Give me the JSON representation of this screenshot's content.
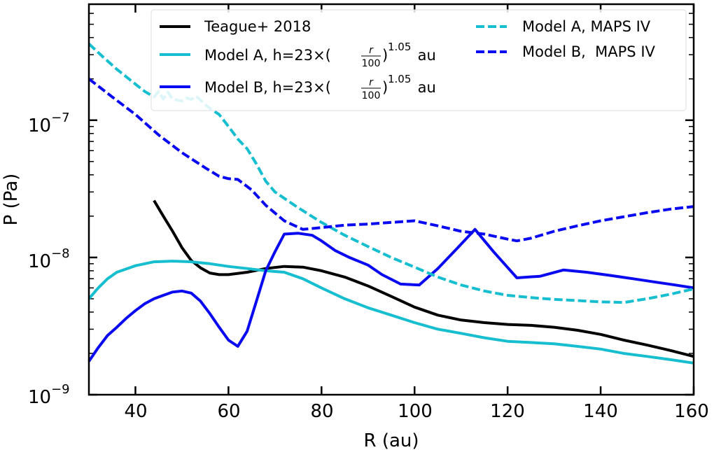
{
  "chart_data": {
    "type": "line",
    "title": "",
    "xlabel": "R (au)",
    "ylabel": "P (Pa)",
    "xlim": [
      30,
      160
    ],
    "ylim": [
      1e-09,
      7e-07
    ],
    "yscale": "log",
    "x_ticks": [
      40,
      60,
      80,
      100,
      120,
      140,
      160
    ],
    "x_tick_labels": [
      "40",
      "60",
      "80",
      "100",
      "120",
      "140",
      "160"
    ],
    "y_major_ticks": [
      {
        "base": "10",
        "exp": "−9",
        "value": 1e-09
      },
      {
        "base": "10",
        "exp": "−8",
        "value": 1e-08
      },
      {
        "base": "10",
        "exp": "−7",
        "value": 1e-07
      }
    ],
    "legend_position": "top",
    "legend": [
      {
        "label": "Teague+ 2018",
        "color": "#000000",
        "dash": "solid"
      },
      {
        "label_prefix": "Model A, h=23×(",
        "frac_num": "r",
        "frac_den": "100",
        "frac_exp": "1.05",
        "label_suffix": " au",
        "color": "#17becf",
        "dash": "solid"
      },
      {
        "label_prefix": "Model B, h=23×(",
        "frac_num": "r",
        "frac_den": "100",
        "frac_exp": "1.05",
        "label_suffix": " au",
        "color": "#0a0af0",
        "dash": "solid"
      },
      {
        "label": "Model A, MAPS IV",
        "color": "#17becf",
        "dash": "dashed"
      },
      {
        "label": "Model B,  MAPS IV",
        "color": "#0a0af0",
        "dash": "dashed"
      }
    ],
    "series": [
      {
        "name": "Teague+ 2018",
        "color": "#000000",
        "dash": "solid",
        "x": [
          44,
          46,
          48,
          50,
          52,
          54,
          56,
          58,
          60,
          64,
          68,
          72,
          76,
          80,
          85,
          90,
          95,
          100,
          105,
          110,
          115,
          120,
          125,
          130,
          135,
          140,
          145,
          150,
          155,
          160
        ],
        "y": [
          2.6e-08,
          2e-08,
          1.55e-08,
          1.18e-08,
          9.5e-09,
          8.4e-09,
          7.7e-09,
          7.5e-09,
          7.5e-09,
          7.8e-09,
          8.3e-09,
          8.6e-09,
          8.5e-09,
          8e-09,
          7.2e-09,
          6.2e-09,
          5.2e-09,
          4.35e-09,
          3.8e-09,
          3.5e-09,
          3.35e-09,
          3.25e-09,
          3.2e-09,
          3.1e-09,
          2.95e-09,
          2.75e-09,
          2.5e-09,
          2.3e-09,
          2.1e-09,
          1.9e-09
        ]
      },
      {
        "name": "Model A, h=23×(r/100)^1.05 au",
        "color": "#17becf",
        "dash": "solid",
        "x": [
          30,
          32,
          34,
          36,
          40,
          44,
          48,
          52,
          56,
          60,
          64,
          68,
          72,
          76,
          80,
          85,
          90,
          95,
          100,
          105,
          110,
          115,
          120,
          125,
          130,
          135,
          140,
          145,
          150,
          155,
          160
        ],
        "y": [
          5e-09,
          6e-09,
          7e-09,
          7.8e-09,
          8.7e-09,
          9.3e-09,
          9.4e-09,
          9.3e-09,
          9e-09,
          8.6e-09,
          8.3e-09,
          8e-09,
          7.8e-09,
          7e-09,
          6e-09,
          5e-09,
          4.3e-09,
          3.8e-09,
          3.35e-09,
          3e-09,
          2.8e-09,
          2.6e-09,
          2.45e-09,
          2.4e-09,
          2.35e-09,
          2.25e-09,
          2.15e-09,
          2e-09,
          1.9e-09,
          1.8e-09,
          1.7e-09
        ]
      },
      {
        "name": "Model B, h=23×(r/100)^1.05 au",
        "color": "#0a0af0",
        "dash": "solid",
        "x": [
          30,
          32,
          34,
          36,
          38,
          40,
          42,
          44,
          46,
          48,
          50,
          52,
          54,
          56,
          58,
          60,
          62,
          64,
          66,
          68,
          70,
          72,
          75,
          78,
          80,
          83,
          86,
          90,
          93,
          97,
          101,
          105,
          109,
          113,
          117,
          122,
          127,
          132,
          137,
          142,
          147,
          152,
          156,
          160
        ],
        "y": [
          1.75e-09,
          2.2e-09,
          2.7e-09,
          3.1e-09,
          3.6e-09,
          4.1e-09,
          4.6e-09,
          5e-09,
          5.3e-09,
          5.6e-09,
          5.7e-09,
          5.5e-09,
          4.8e-09,
          3.9e-09,
          3.1e-09,
          2.5e-09,
          2.25e-09,
          2.9e-09,
          4.8e-09,
          8e-09,
          1.1e-08,
          1.48e-08,
          1.5e-08,
          1.45e-08,
          1.32e-08,
          1.12e-08,
          1e-08,
          8.8e-09,
          7.5e-09,
          6.4e-09,
          6.3e-09,
          8.3e-09,
          1.15e-08,
          1.6e-08,
          1.1e-08,
          7.1e-09,
          7.3e-09,
          8.1e-09,
          7.8e-09,
          7.4e-09,
          7e-09,
          6.6e-09,
          6.3e-09,
          6e-09
        ]
      },
      {
        "name": "Model A, MAPS IV",
        "color": "#17becf",
        "dash": "dashed",
        "x": [
          30,
          33,
          36,
          39,
          42,
          44,
          45,
          46,
          47,
          48,
          49,
          50,
          51,
          52,
          53,
          54,
          55,
          56,
          58,
          60,
          62,
          64,
          66,
          68,
          70,
          75,
          80,
          85,
          90,
          95,
          100,
          105,
          110,
          115,
          120,
          125,
          130,
          135,
          140,
          145,
          150,
          155,
          160
        ],
        "y": [
          3.6e-07,
          2.9e-07,
          2.35e-07,
          1.95e-07,
          1.62e-07,
          1.48e-07,
          1.62e-07,
          1.43e-07,
          1.6e-07,
          1.42e-07,
          1.4e-07,
          1.38e-07,
          1.45e-07,
          1.42e-07,
          1.5e-07,
          1.4e-07,
          1.3e-07,
          1.22e-07,
          1.1e-07,
          9e-08,
          7.3e-08,
          6.2e-08,
          4.8e-08,
          3.6e-08,
          3e-08,
          2.3e-08,
          1.8e-08,
          1.45e-08,
          1.2e-08,
          1e-08,
          8.5e-09,
          7.2e-09,
          6.3e-09,
          5.7e-09,
          5.3e-09,
          5.1e-09,
          4.95e-09,
          4.85e-09,
          4.75e-09,
          4.7e-09,
          5e-09,
          5.4e-09,
          5.9e-09
        ]
      },
      {
        "name": "Model B,  MAPS IV",
        "color": "#0a0af0",
        "dash": "dashed",
        "x": [
          30,
          35,
          40,
          45,
          50,
          55,
          58,
          60,
          62,
          65,
          68,
          72,
          76,
          80,
          85,
          90,
          95,
          100,
          105,
          110,
          115,
          120,
          122,
          125,
          130,
          135,
          140,
          145,
          150,
          155,
          160
        ],
        "y": [
          2e-07,
          1.48e-07,
          1.1e-07,
          7.8e-08,
          5.8e-08,
          4.5e-08,
          3.9e-08,
          3.75e-08,
          3.7e-08,
          3.1e-08,
          2.4e-08,
          1.85e-08,
          1.6e-08,
          1.65e-08,
          1.72e-08,
          1.75e-08,
          1.8e-08,
          1.85e-08,
          1.7e-08,
          1.55e-08,
          1.48e-08,
          1.36e-08,
          1.32e-08,
          1.38e-08,
          1.55e-08,
          1.7e-08,
          1.85e-08,
          1.98e-08,
          2.12e-08,
          2.25e-08,
          2.35e-08
        ]
      }
    ]
  }
}
